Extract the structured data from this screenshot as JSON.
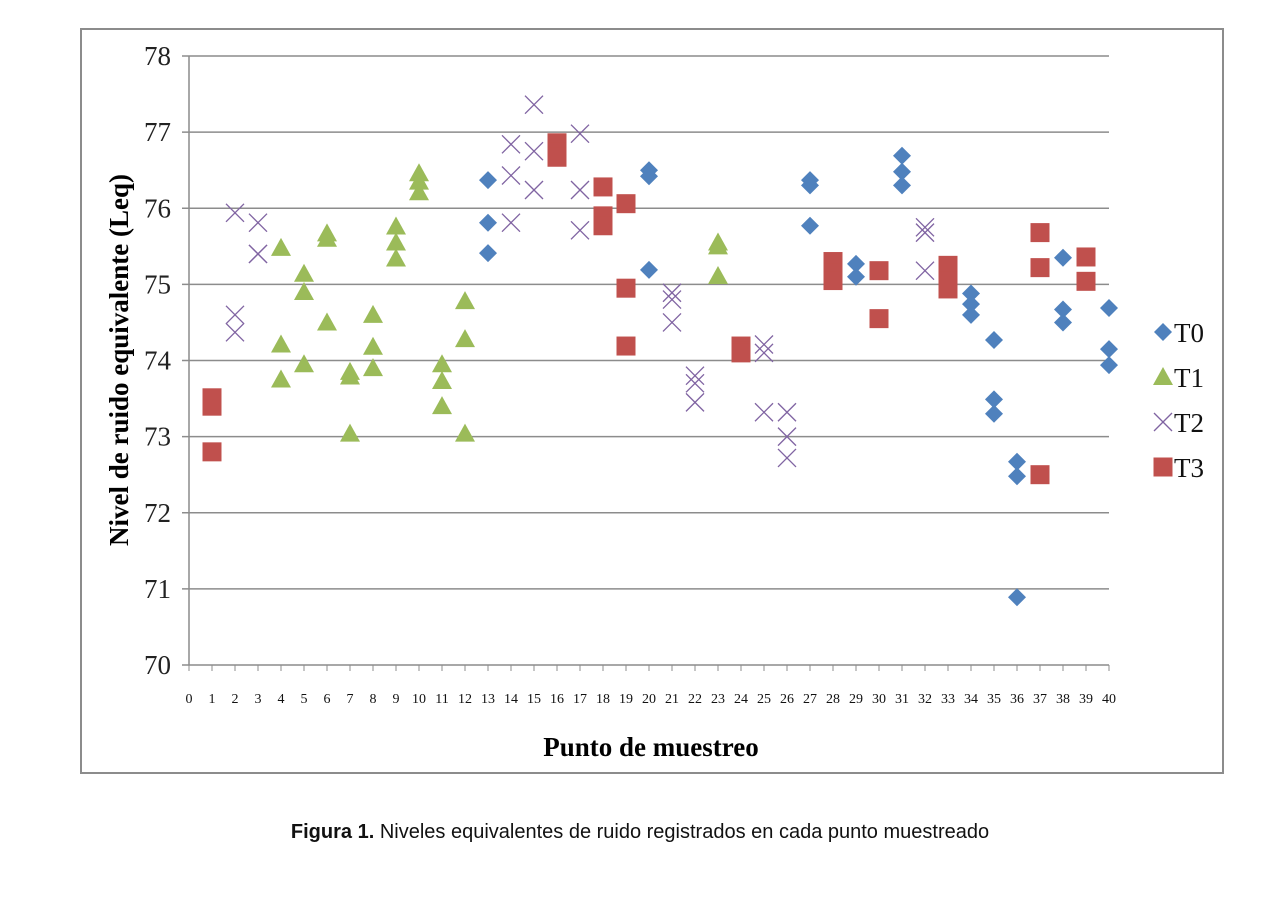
{
  "caption": {
    "label": "Figura 1.",
    "text": " Niveles equivalentes de ruido registrados en cada punto muestreado"
  },
  "chart_data": {
    "type": "scatter",
    "title": "",
    "xlabel": "Punto de muestreo",
    "ylabel": "Nivel de ruido equivalente (Leq)",
    "xlim": [
      0,
      40
    ],
    "ylim": [
      70,
      78
    ],
    "xticks": [
      0,
      1,
      2,
      3,
      4,
      5,
      6,
      7,
      8,
      9,
      10,
      11,
      12,
      13,
      14,
      15,
      16,
      17,
      18,
      19,
      20,
      21,
      22,
      23,
      24,
      25,
      26,
      27,
      28,
      29,
      30,
      31,
      32,
      33,
      34,
      35,
      36,
      37,
      38,
      39,
      40
    ],
    "yticks": [
      70,
      71,
      72,
      73,
      74,
      75,
      76,
      77,
      78
    ],
    "grid": "horizontal",
    "legend_position": "right",
    "series": [
      {
        "name": "T0",
        "marker": "diamond",
        "color": "#4f81bd",
        "points": [
          [
            13,
            76.37
          ],
          [
            13,
            75.81
          ],
          [
            13,
            75.41
          ],
          [
            20,
            76.5
          ],
          [
            20,
            76.42
          ],
          [
            20,
            75.19
          ],
          [
            27,
            76.37
          ],
          [
            27,
            76.3
          ],
          [
            27,
            75.77
          ],
          [
            29,
            75.27
          ],
          [
            29,
            75.1
          ],
          [
            31,
            76.69
          ],
          [
            31,
            76.48
          ],
          [
            31,
            76.3
          ],
          [
            34,
            74.88
          ],
          [
            34,
            74.74
          ],
          [
            34,
            74.6
          ],
          [
            35,
            74.27
          ],
          [
            35,
            73.49
          ],
          [
            35,
            73.3
          ],
          [
            36,
            72.67
          ],
          [
            36,
            72.48
          ],
          [
            36,
            70.89
          ],
          [
            38,
            75.35
          ],
          [
            38,
            74.67
          ],
          [
            38,
            74.5
          ],
          [
            40,
            74.69
          ],
          [
            40,
            74.15
          ],
          [
            40,
            73.94
          ]
        ]
      },
      {
        "name": "T1",
        "marker": "triangle",
        "color": "#9bbb59",
        "points": [
          [
            4,
            75.48
          ],
          [
            4,
            74.21
          ],
          [
            4,
            73.75
          ],
          [
            5,
            75.14
          ],
          [
            5,
            74.9
          ],
          [
            5,
            73.95
          ],
          [
            6,
            75.67
          ],
          [
            6,
            75.6
          ],
          [
            6,
            74.5
          ],
          [
            7,
            73.85
          ],
          [
            7,
            73.79
          ],
          [
            7,
            73.04
          ],
          [
            8,
            74.6
          ],
          [
            8,
            74.18
          ],
          [
            8,
            73.9
          ],
          [
            9,
            75.76
          ],
          [
            9,
            75.55
          ],
          [
            9,
            75.34
          ],
          [
            10,
            76.46
          ],
          [
            10,
            76.35
          ],
          [
            10,
            76.21
          ],
          [
            11,
            73.95
          ],
          [
            11,
            73.73
          ],
          [
            11,
            73.4
          ],
          [
            12,
            74.78
          ],
          [
            12,
            74.28
          ],
          [
            12,
            73.04
          ],
          [
            23,
            75.55
          ],
          [
            23,
            75.5
          ],
          [
            23,
            75.11
          ]
        ]
      },
      {
        "name": "T2",
        "marker": "x",
        "color": "#8064a2",
        "points": [
          [
            2,
            75.94
          ],
          [
            2,
            74.6
          ],
          [
            2,
            74.37
          ],
          [
            3,
            75.81
          ],
          [
            3,
            75.4
          ],
          [
            3,
            75.4
          ],
          [
            14,
            76.84
          ],
          [
            14,
            76.43
          ],
          [
            14,
            75.81
          ],
          [
            15,
            77.36
          ],
          [
            15,
            76.75
          ],
          [
            15,
            76.24
          ],
          [
            17,
            76.98
          ],
          [
            17,
            76.24
          ],
          [
            17,
            75.71
          ],
          [
            21,
            74.89
          ],
          [
            21,
            74.8
          ],
          [
            21,
            74.5
          ],
          [
            22,
            73.8
          ],
          [
            22,
            73.7
          ],
          [
            22,
            73.45
          ],
          [
            25,
            74.21
          ],
          [
            25,
            74.1
          ],
          [
            25,
            73.32
          ],
          [
            26,
            73.32
          ],
          [
            26,
            73.0
          ],
          [
            26,
            72.72
          ],
          [
            32,
            75.75
          ],
          [
            32,
            75.68
          ],
          [
            32,
            75.18
          ]
        ]
      },
      {
        "name": "T3",
        "marker": "square",
        "color": "#c0504d",
        "points": [
          [
            1,
            73.51
          ],
          [
            1,
            73.4
          ],
          [
            1,
            72.8
          ],
          [
            16,
            76.86
          ],
          [
            16,
            76.74
          ],
          [
            16,
            76.67
          ],
          [
            18,
            76.28
          ],
          [
            18,
            75.9
          ],
          [
            18,
            75.77
          ],
          [
            19,
            76.06
          ],
          [
            19,
            74.95
          ],
          [
            19,
            74.19
          ],
          [
            24,
            74.19
          ],
          [
            24,
            74.13
          ],
          [
            24,
            74.1
          ],
          [
            28,
            75.3
          ],
          [
            28,
            75.15
          ],
          [
            28,
            75.05
          ],
          [
            30,
            75.18
          ],
          [
            30,
            74.55
          ],
          [
            33,
            75.25
          ],
          [
            33,
            75.05
          ],
          [
            33,
            74.94
          ],
          [
            37,
            75.68
          ],
          [
            37,
            75.22
          ],
          [
            37,
            72.5
          ],
          [
            39,
            75.36
          ],
          [
            39,
            75.04
          ]
        ]
      }
    ]
  }
}
